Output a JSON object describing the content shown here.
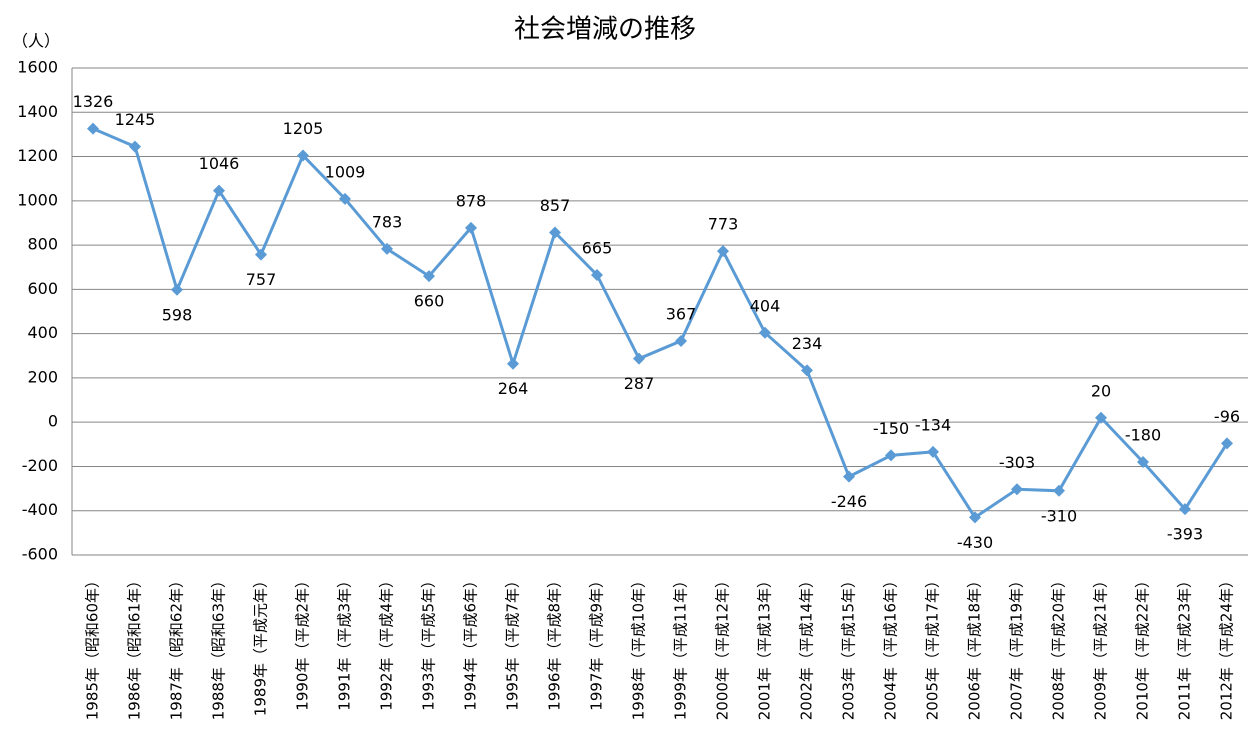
{
  "chart_data": {
    "type": "line",
    "title": "社会増減の推移",
    "y_label": "（人）",
    "categories": [
      "1985年（昭和60年）",
      "1986年（昭和61年）",
      "1987年（昭和62年）",
      "1988年（昭和63年）",
      "1989年（平成元年）",
      "1990年（平成2年）",
      "1991年（平成3年）",
      "1992年（平成4年）",
      "1993年（平成5年）",
      "1994年（平成6年）",
      "1995年（平成7年）",
      "1996年（平成8年）",
      "1997年（平成9年）",
      "1998年（平成10年）",
      "1999年（平成11年）",
      "2000年（平成12年）",
      "2001年（平成13年）",
      "2002年（平成14年）",
      "2003年（平成15年）",
      "2004年（平成16年）",
      "2005年（平成17年）",
      "2006年（平成18年）",
      "2007年（平成19年）",
      "2008年（平成20年）",
      "2009年（平成21年）",
      "2010年（平成22年）",
      "2011年（平成23年）",
      "2012年（平成24年）"
    ],
    "values": [
      1326,
      1245,
      598,
      1046,
      757,
      1205,
      1009,
      783,
      660,
      878,
      264,
      857,
      665,
      287,
      367,
      773,
      404,
      234,
      -246,
      -150,
      -134,
      -430,
      -303,
      -310,
      20,
      -180,
      -393,
      -96
    ],
    "color": "#5b9bd5",
    "ylim": [
      -600,
      1600
    ],
    "yticks": [
      -600,
      -400,
      -200,
      0,
      200,
      400,
      600,
      800,
      1000,
      1200,
      1400,
      1600
    ],
    "grid": true
  }
}
